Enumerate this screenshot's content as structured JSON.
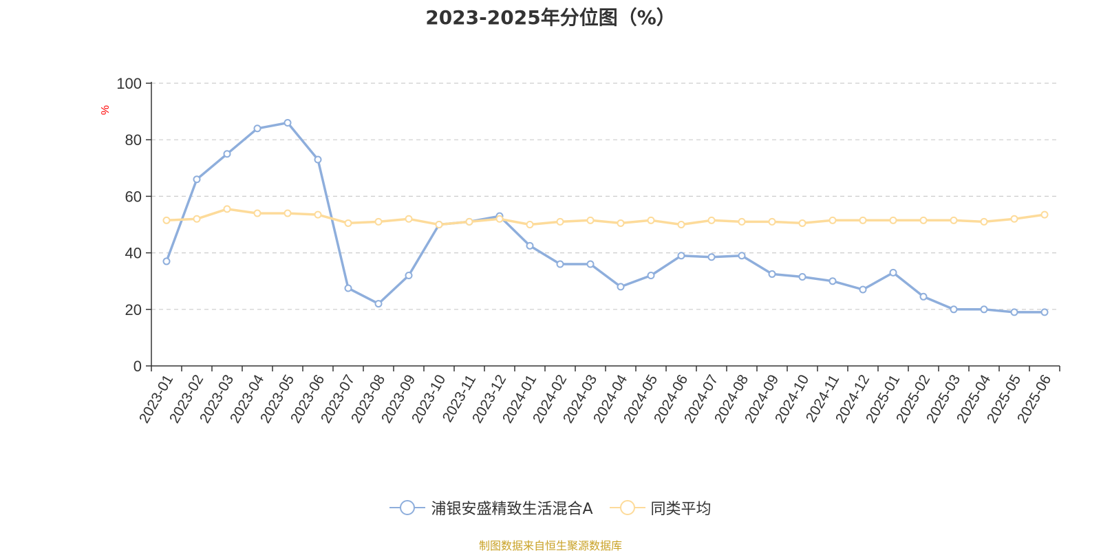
{
  "title": "2023-2025年分位图（%）",
  "source": "制图数据来自恒生聚源数据库",
  "colors": {
    "series1": "#8eaedc",
    "series2": "#fddb9a",
    "axis": "#333333",
    "grid": "#cccccc",
    "unit": "#ff0000"
  },
  "chart_data": {
    "type": "line",
    "ylabel": "%",
    "ylim": [
      0,
      100
    ],
    "yticks": [
      0,
      20,
      40,
      60,
      80,
      100
    ],
    "grid": true,
    "legend_position": "bottom",
    "categories": [
      "2023-01",
      "2023-02",
      "2023-03",
      "2023-04",
      "2023-05",
      "2023-06",
      "2023-07",
      "2023-08",
      "2023-09",
      "2023-10",
      "2023-11",
      "2023-12",
      "2024-01",
      "2024-02",
      "2024-03",
      "2024-04",
      "2024-05",
      "2024-06",
      "2024-07",
      "2024-08",
      "2024-09",
      "2024-10",
      "2024-11",
      "2024-12",
      "2025-01",
      "2025-02",
      "2025-03",
      "2025-04",
      "2025-05",
      "2025-06"
    ],
    "series": [
      {
        "name": "浦银安盛精致生活混合A",
        "values": [
          37,
          66,
          75,
          84,
          86,
          73,
          27.5,
          22,
          32,
          50,
          51,
          53,
          42.5,
          36,
          36,
          28,
          32,
          39,
          38.5,
          39,
          32.5,
          31.5,
          30,
          27,
          33,
          24.5,
          20,
          20,
          19,
          19
        ]
      },
      {
        "name": "同类平均",
        "values": [
          51.5,
          52,
          55.5,
          54,
          54,
          53.5,
          50.5,
          51,
          52,
          50,
          51,
          52,
          50,
          51,
          51.5,
          50.5,
          51.5,
          50,
          51.5,
          51,
          51,
          50.5,
          51.5,
          51.5,
          51.5,
          51.5,
          51.5,
          51,
          52,
          53.5
        ]
      }
    ]
  }
}
